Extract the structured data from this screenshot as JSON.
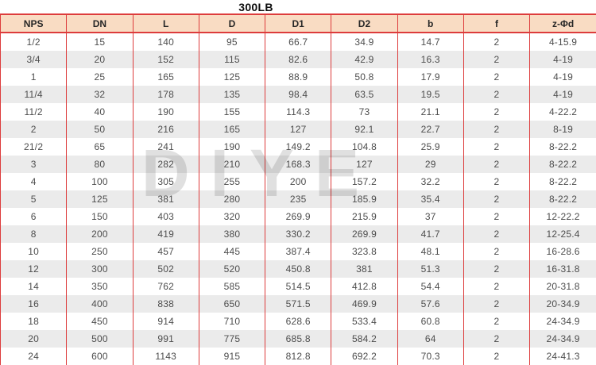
{
  "title": "300LB",
  "watermark": "DIYE",
  "colors": {
    "border-red": "#dd3c3c",
    "header-bg": "#f9dcc3",
    "row-alt": "#ebebeb",
    "watermark": "#c7c7c7"
  },
  "table": {
    "columns": [
      "NPS",
      "DN",
      "L",
      "D",
      "D1",
      "D2",
      "b",
      "f",
      "z-Φd"
    ],
    "rows": [
      [
        "1/2",
        "15",
        "140",
        "95",
        "66.7",
        "34.9",
        "14.7",
        "2",
        "4-15.9"
      ],
      [
        "3/4",
        "20",
        "152",
        "115",
        "82.6",
        "42.9",
        "16.3",
        "2",
        "4-19"
      ],
      [
        "1",
        "25",
        "165",
        "125",
        "88.9",
        "50.8",
        "17.9",
        "2",
        "4-19"
      ],
      [
        "11/4",
        "32",
        "178",
        "135",
        "98.4",
        "63.5",
        "19.5",
        "2",
        "4-19"
      ],
      [
        "11/2",
        "40",
        "190",
        "155",
        "114.3",
        "73",
        "21.1",
        "2",
        "4-22.2"
      ],
      [
        "2",
        "50",
        "216",
        "165",
        "127",
        "92.1",
        "22.7",
        "2",
        "8-19"
      ],
      [
        "21/2",
        "65",
        "241",
        "190",
        "149.2",
        "104.8",
        "25.9",
        "2",
        "8-22.2"
      ],
      [
        "3",
        "80",
        "282",
        "210",
        "168.3",
        "127",
        "29",
        "2",
        "8-22.2"
      ],
      [
        "4",
        "100",
        "305",
        "255",
        "200",
        "157.2",
        "32.2",
        "2",
        "8-22.2"
      ],
      [
        "5",
        "125",
        "381",
        "280",
        "235",
        "185.9",
        "35.4",
        "2",
        "8-22.2"
      ],
      [
        "6",
        "150",
        "403",
        "320",
        "269.9",
        "215.9",
        "37",
        "2",
        "12-22.2"
      ],
      [
        "8",
        "200",
        "419",
        "380",
        "330.2",
        "269.9",
        "41.7",
        "2",
        "12-25.4"
      ],
      [
        "10",
        "250",
        "457",
        "445",
        "387.4",
        "323.8",
        "48.1",
        "2",
        "16-28.6"
      ],
      [
        "12",
        "300",
        "502",
        "520",
        "450.8",
        "381",
        "51.3",
        "2",
        "16-31.8"
      ],
      [
        "14",
        "350",
        "762",
        "585",
        "514.5",
        "412.8",
        "54.4",
        "2",
        "20-31.8"
      ],
      [
        "16",
        "400",
        "838",
        "650",
        "571.5",
        "469.9",
        "57.6",
        "2",
        "20-34.9"
      ],
      [
        "18",
        "450",
        "914",
        "710",
        "628.6",
        "533.4",
        "60.8",
        "2",
        "24-34.9"
      ],
      [
        "20",
        "500",
        "991",
        "775",
        "685.8",
        "584.2",
        "64",
        "2",
        "24-34.9"
      ],
      [
        "24",
        "600",
        "1143",
        "915",
        "812.8",
        "692.2",
        "70.3",
        "2",
        "24-41.3"
      ]
    ]
  }
}
